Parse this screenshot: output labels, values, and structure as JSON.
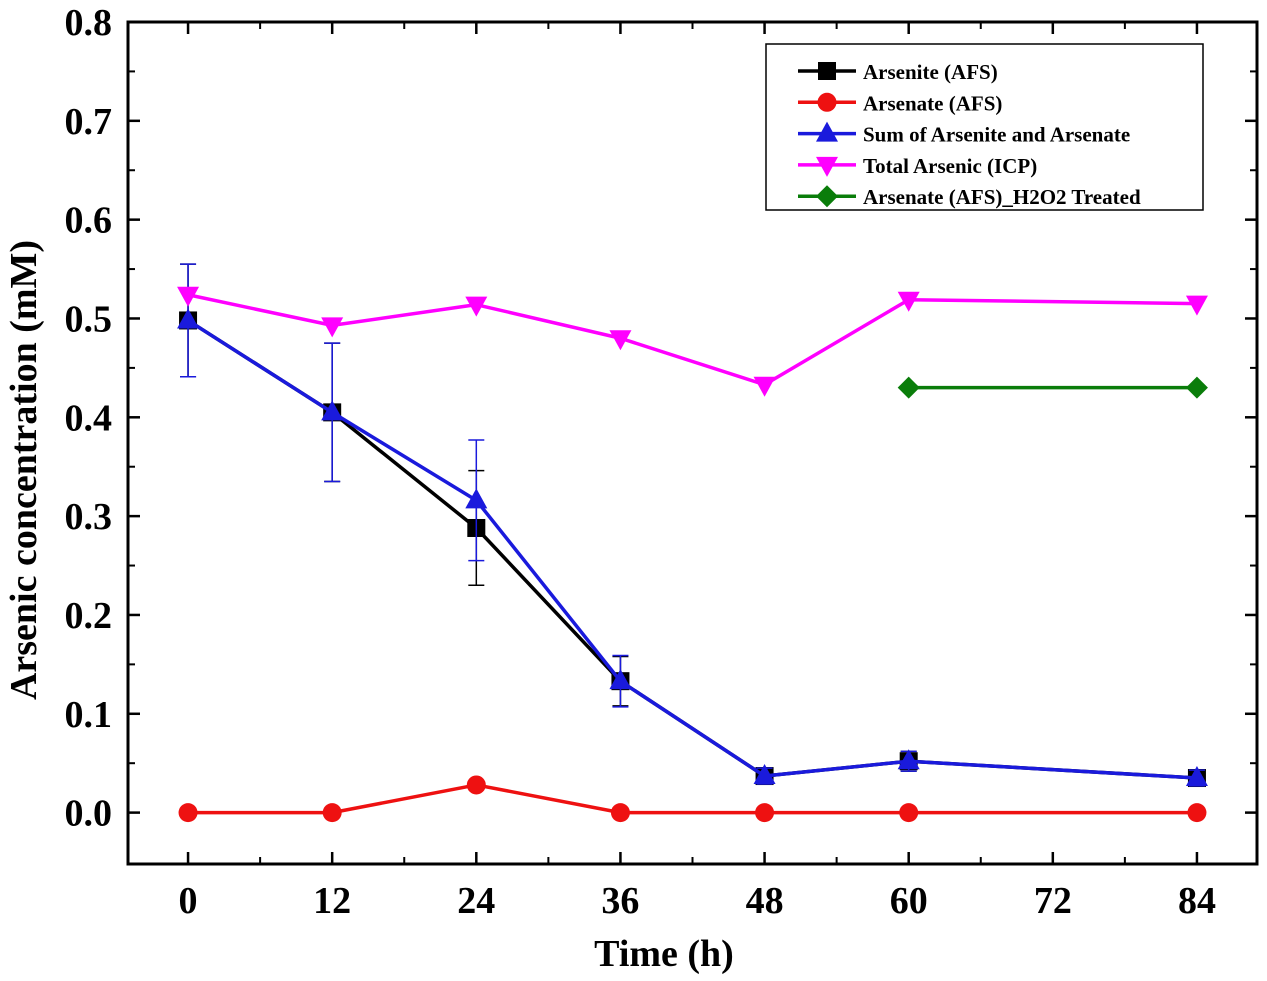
{
  "chart_data": {
    "type": "line",
    "title": "",
    "xlabel": "Time (h)",
    "ylabel": "Arsenic concentration (mM)",
    "xlim": [
      -5,
      89
    ],
    "ylim": [
      -0.052,
      0.8
    ],
    "xticks": [
      0,
      12,
      24,
      36,
      48,
      60,
      72,
      84
    ],
    "xtick_labels": [
      "0",
      "12",
      "24",
      "36",
      "48",
      "60",
      "72",
      "84"
    ],
    "yticks": [
      0.0,
      0.1,
      0.2,
      0.3,
      0.4,
      0.5,
      0.6,
      0.7,
      0.8
    ],
    "ytick_labels": [
      "0.0",
      "0.1",
      "0.2",
      "0.3",
      "0.4",
      "0.5",
      "0.6",
      "0.7",
      "0.8"
    ],
    "legend_position": "top-right",
    "series": [
      {
        "name": "Arsenite (AFS)",
        "color": "#000000",
        "marker": "square",
        "x": [
          0,
          12,
          24,
          36,
          48,
          60,
          84
        ],
        "values": [
          0.498,
          0.405,
          0.288,
          0.133,
          0.037,
          0.052,
          0.035
        ],
        "errors": [
          0.057,
          0.07,
          0.058,
          0.025,
          0.008,
          0.01,
          0.008
        ]
      },
      {
        "name": "Arsenate (AFS)",
        "color": "#ee1111",
        "marker": "circle",
        "x": [
          0,
          12,
          24,
          36,
          48,
          60,
          84
        ],
        "values": [
          0.0,
          0.0,
          0.028,
          0.0,
          0.0,
          0.0,
          0.0
        ],
        "errors": []
      },
      {
        "name": "Sum of Arsenite and Arsenate",
        "color": "#1a1adc",
        "marker": "triangle-up",
        "x": [
          0,
          12,
          24,
          36,
          48,
          60,
          84
        ],
        "values": [
          0.498,
          0.405,
          0.316,
          0.133,
          0.037,
          0.052,
          0.035
        ],
        "errors": [
          0.057,
          0.07,
          0.061,
          0.026,
          0.008,
          0.01,
          0.008
        ]
      },
      {
        "name": "Total Arsenic (ICP)",
        "color": "#ff00ff",
        "marker": "triangle-down",
        "x": [
          0,
          12,
          24,
          36,
          48,
          60,
          84
        ],
        "values": [
          0.524,
          0.493,
          0.514,
          0.48,
          0.433,
          0.519,
          0.515
        ],
        "errors": []
      },
      {
        "name": "Arsenate (AFS)_H2O2 Treated",
        "color": "#0a7d0a",
        "marker": "diamond",
        "x": [
          60,
          84
        ],
        "values": [
          0.43,
          0.43
        ],
        "errors": []
      }
    ]
  }
}
